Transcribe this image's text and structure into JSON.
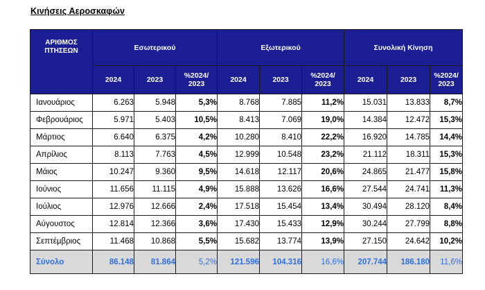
{
  "title": "Κινήσεις Αεροσκαφών",
  "header": {
    "corner_label": "ΑΡΙΘΜΟΣ ΠΤΗΣΕΩΝ",
    "groups": [
      "Εσωτερικού",
      "Εξωτερικού",
      "Συνολική Κίνηση"
    ],
    "subheaders": [
      "2024",
      "2023",
      "%2024/ 2023",
      "2024",
      "2023",
      "%2024/ 2023",
      "2024",
      "2023",
      "%2024/ 2023"
    ]
  },
  "rows": [
    [
      "Ιανουάριος",
      "6.263",
      "5.948",
      "5,3%",
      "8.768",
      "7.885",
      "11,2%",
      "15.031",
      "13.833",
      "8,7%"
    ],
    [
      "Φεβρουάριος",
      "5.971",
      "5.403",
      "10,5%",
      "8.413",
      "7.069",
      "19,0%",
      "14.384",
      "12.472",
      "15,3%"
    ],
    [
      "Μάρτιος",
      "6.640",
      "6.375",
      "4,2%",
      "10.280",
      "8.410",
      "22,2%",
      "16.920",
      "14.785",
      "14,4%"
    ],
    [
      "Απρίλιος",
      "8.113",
      "7.763",
      "4,5%",
      "12.999",
      "10.548",
      "23,2%",
      "21.112",
      "18.311",
      "15,3%"
    ],
    [
      "Μάιος",
      "10.247",
      "9.360",
      "9,5%",
      "14.618",
      "12.117",
      "20,6%",
      "24.865",
      "21.477",
      "15,8%"
    ],
    [
      "Ιούνιος",
      "11.656",
      "11.115",
      "4,9%",
      "15.888",
      "13.626",
      "16,6%",
      "27.544",
      "24.741",
      "11,3%"
    ],
    [
      "Ιούλιος",
      "12.976",
      "12.666",
      "2,4%",
      "17.518",
      "15.454",
      "13,4%",
      "30.494",
      "28.120",
      "8,4%"
    ],
    [
      "Αύγουστος",
      "12.814",
      "12.366",
      "3,6%",
      "17.430",
      "15.433",
      "12,9%",
      "30.244",
      "27.799",
      "8,8%"
    ],
    [
      "Σεπτέμβριος",
      "11.468",
      "10.868",
      "5,5%",
      "15.682",
      "13.774",
      "13,9%",
      "27.150",
      "24.642",
      "10,2%"
    ]
  ],
  "total": [
    "Σύνολο",
    "86.148",
    "81.864",
    "5,2%",
    "121.596",
    "104.316",
    "16,6%",
    "207.744",
    "186.180",
    "11,6%"
  ],
  "colors": {
    "header_bg": "#1b1f93",
    "header_text": "#ffffff",
    "total_bg": "#d9d9d9",
    "total_text": "#2e6fe0"
  }
}
